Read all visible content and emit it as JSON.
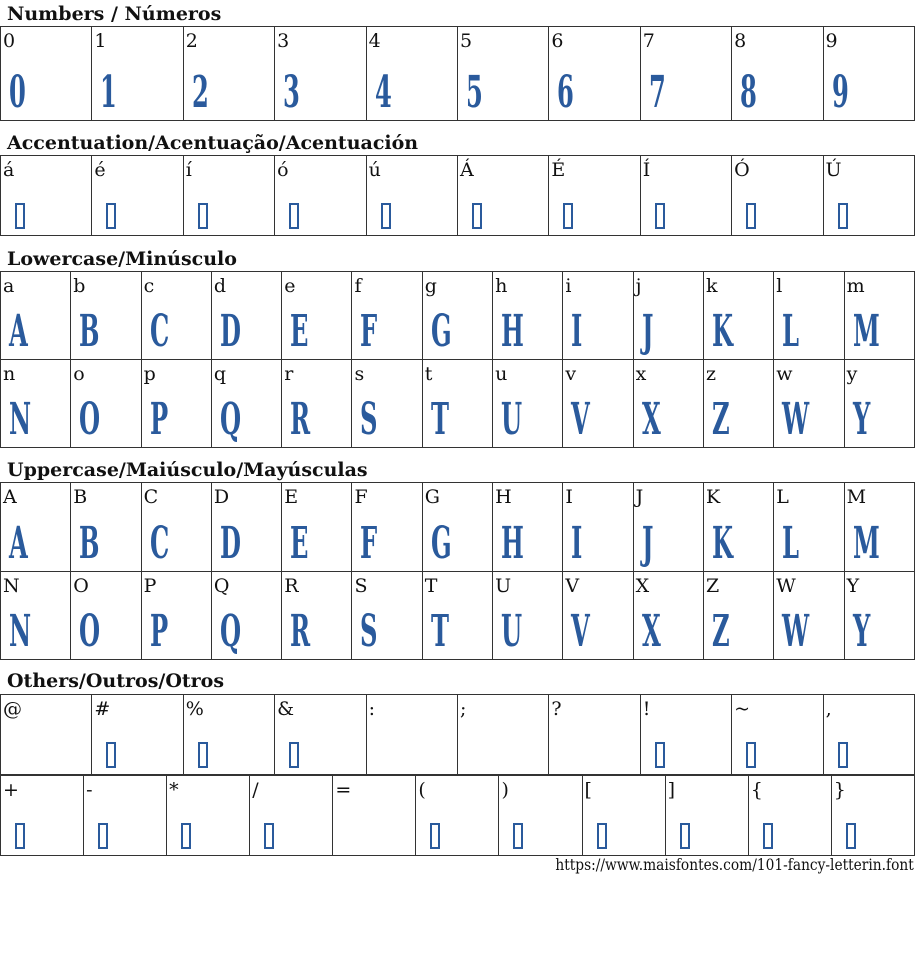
{
  "accent_color": "#2a5a9c",
  "sections": [
    {
      "title": "Numbers / Números",
      "rows": [
        [
          [
            "0",
            "0"
          ],
          [
            "1",
            "1"
          ],
          [
            "2",
            "2"
          ],
          [
            "3",
            "3"
          ],
          [
            "4",
            "4"
          ],
          [
            "5",
            "5"
          ],
          [
            "6",
            "6"
          ],
          [
            "7",
            "7"
          ],
          [
            "8",
            "8"
          ],
          [
            "9",
            "9"
          ]
        ]
      ]
    },
    {
      "title": "Accentuation/Acentuação/Acentuación",
      "rows": [
        [
          [
            "á",
            null
          ],
          [
            "é",
            null
          ],
          [
            "í",
            null
          ],
          [
            "ó",
            null
          ],
          [
            "ú",
            null
          ],
          [
            "Á",
            null
          ],
          [
            "É",
            null
          ],
          [
            "Í",
            null
          ],
          [
            "Ó",
            null
          ],
          [
            "Ú",
            null
          ]
        ]
      ]
    },
    {
      "title": "Lowercase/Minúsculo",
      "rows": [
        [
          [
            "a",
            "A"
          ],
          [
            "b",
            "B"
          ],
          [
            "c",
            "C"
          ],
          [
            "d",
            "D"
          ],
          [
            "e",
            "E"
          ],
          [
            "f",
            "F"
          ],
          [
            "g",
            "G"
          ],
          [
            "h",
            "H"
          ],
          [
            "i",
            "I"
          ],
          [
            "j",
            "J"
          ],
          [
            "k",
            "K"
          ],
          [
            "l",
            "L"
          ],
          [
            "m",
            "M"
          ]
        ],
        [
          [
            "n",
            "N"
          ],
          [
            "o",
            "O"
          ],
          [
            "p",
            "P"
          ],
          [
            "q",
            "Q"
          ],
          [
            "r",
            "R"
          ],
          [
            "s",
            "S"
          ],
          [
            "t",
            "T"
          ],
          [
            "u",
            "U"
          ],
          [
            "v",
            "V"
          ],
          [
            "x",
            "X"
          ],
          [
            "z",
            "Z"
          ],
          [
            "w",
            "W"
          ],
          [
            "y",
            "Y"
          ]
        ]
      ]
    },
    {
      "title": "Uppercase/Maiúsculo/Mayúsculas",
      "rows": [
        [
          [
            "A",
            "A"
          ],
          [
            "B",
            "B"
          ],
          [
            "C",
            "C"
          ],
          [
            "D",
            "D"
          ],
          [
            "E",
            "E"
          ],
          [
            "F",
            "F"
          ],
          [
            "G",
            "G"
          ],
          [
            "H",
            "H"
          ],
          [
            "I",
            "I"
          ],
          [
            "J",
            "J"
          ],
          [
            "K",
            "K"
          ],
          [
            "L",
            "L"
          ],
          [
            "M",
            "M"
          ]
        ],
        [
          [
            "N",
            "N"
          ],
          [
            "O",
            "O"
          ],
          [
            "P",
            "P"
          ],
          [
            "Q",
            "Q"
          ],
          [
            "R",
            "R"
          ],
          [
            "S",
            "S"
          ],
          [
            "T",
            "T"
          ],
          [
            "U",
            "U"
          ],
          [
            "V",
            "V"
          ],
          [
            "X",
            "X"
          ],
          [
            "Z",
            "Z"
          ],
          [
            "W",
            "W"
          ],
          [
            "Y",
            "Y"
          ]
        ]
      ]
    },
    {
      "title": "Others/Outros/Otros",
      "rows": [
        [
          [
            "@",
            ""
          ],
          [
            "#",
            null
          ],
          [
            "%",
            null
          ],
          [
            "&",
            null
          ],
          [
            ":",
            ""
          ],
          [
            ";",
            ""
          ],
          [
            "?",
            ""
          ],
          [
            "!",
            null
          ],
          [
            "~",
            null
          ],
          [
            "‚",
            null
          ]
        ],
        [
          [
            "+",
            null
          ],
          [
            "-",
            null
          ],
          [
            "*",
            null
          ],
          [
            "/",
            null
          ],
          [
            "=",
            ""
          ],
          [
            "(",
            null
          ],
          [
            ")",
            null
          ],
          [
            "[",
            null
          ],
          [
            "]",
            null
          ],
          [
            "{",
            null
          ],
          [
            "}",
            null
          ]
        ]
      ]
    }
  ],
  "footer_url": "https://www.maisfontes.com/101-fancy-letterin.font"
}
